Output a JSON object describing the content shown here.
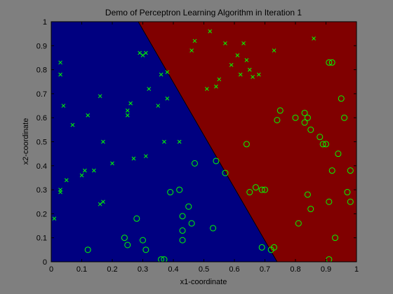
{
  "chart_data": {
    "type": "scatter",
    "title": "Demo of Perceptron Learning Algorithm in Iteration 1",
    "xlabel": "x1-coordinate",
    "ylabel": "x2-coordinate",
    "xlim": [
      0,
      1
    ],
    "ylim": [
      0,
      1
    ],
    "x_ticks": [
      "0",
      "0.1",
      "0.2",
      "0.3",
      "0.4",
      "0.5",
      "0.6",
      "0.7",
      "0.8",
      "0.9",
      "1"
    ],
    "y_ticks": [
      "0",
      "0.1",
      "0.2",
      "0.3",
      "0.4",
      "0.5",
      "0.6",
      "0.7",
      "0.8",
      "0.9",
      "1"
    ],
    "grid": false,
    "colors": {
      "figure_bg": "#7f7f7f",
      "region_negative": "#000080",
      "region_positive": "#800000",
      "marker": "#00ff00"
    },
    "decision_boundary": [
      [
        0.285,
        1.0
      ],
      [
        0.74,
        0.0
      ]
    ],
    "series": [
      {
        "marker": "x",
        "points": [
          [
            0.03,
            0.83
          ],
          [
            0.03,
            0.78
          ],
          [
            0.04,
            0.65
          ],
          [
            0.07,
            0.57
          ],
          [
            0.03,
            0.3
          ],
          [
            0.03,
            0.29
          ],
          [
            0.05,
            0.34
          ],
          [
            0.1,
            0.36
          ],
          [
            0.11,
            0.38
          ],
          [
            0.14,
            0.38
          ],
          [
            0.12,
            0.61
          ],
          [
            0.16,
            0.69
          ],
          [
            0.17,
            0.5
          ],
          [
            0.16,
            0.24
          ],
          [
            0.17,
            0.25
          ],
          [
            0.2,
            0.41
          ],
          [
            0.25,
            0.63
          ],
          [
            0.25,
            0.61
          ],
          [
            0.26,
            0.66
          ],
          [
            0.27,
            0.43
          ],
          [
            0.29,
            0.87
          ],
          [
            0.3,
            0.86
          ],
          [
            0.31,
            0.87
          ],
          [
            0.31,
            0.44
          ],
          [
            0.32,
            0.72
          ],
          [
            0.35,
            0.65
          ],
          [
            0.36,
            0.78
          ],
          [
            0.37,
            0.5
          ],
          [
            0.38,
            0.68
          ],
          [
            0.38,
            0.79
          ],
          [
            0.42,
            0.5
          ],
          [
            0.46,
            0.88
          ],
          [
            0.47,
            0.92
          ],
          [
            0.51,
            0.72
          ],
          [
            0.52,
            0.96
          ],
          [
            0.54,
            0.73
          ],
          [
            0.55,
            0.76
          ],
          [
            0.57,
            0.91
          ],
          [
            0.59,
            0.82
          ],
          [
            0.61,
            0.86
          ],
          [
            0.62,
            0.78
          ],
          [
            0.63,
            0.91
          ],
          [
            0.64,
            0.84
          ],
          [
            0.65,
            0.8
          ],
          [
            0.66,
            0.77
          ],
          [
            0.68,
            0.78
          ],
          [
            0.73,
            0.88
          ],
          [
            0.86,
            0.93
          ],
          [
            0.01,
            0.18
          ]
        ]
      },
      {
        "marker": "o",
        "points": [
          [
            0.12,
            0.05
          ],
          [
            0.24,
            0.1
          ],
          [
            0.25,
            0.07
          ],
          [
            0.28,
            0.18
          ],
          [
            0.3,
            0.09
          ],
          [
            0.31,
            0.05
          ],
          [
            0.36,
            0.01
          ],
          [
            0.37,
            0.01
          ],
          [
            0.39,
            0.29
          ],
          [
            0.42,
            0.3
          ],
          [
            0.43,
            0.09
          ],
          [
            0.43,
            0.19
          ],
          [
            0.43,
            0.13
          ],
          [
            0.45,
            0.23
          ],
          [
            0.46,
            0.16
          ],
          [
            0.47,
            0.41
          ],
          [
            0.53,
            0.14
          ],
          [
            0.54,
            0.42
          ],
          [
            0.57,
            0.37
          ],
          [
            0.64,
            0.49
          ],
          [
            0.65,
            0.29
          ],
          [
            0.67,
            0.31
          ],
          [
            0.69,
            0.3
          ],
          [
            0.7,
            0.3
          ],
          [
            0.69,
            0.06
          ],
          [
            0.72,
            0.05
          ],
          [
            0.73,
            0.06
          ],
          [
            0.74,
            0.59
          ],
          [
            0.75,
            0.63
          ],
          [
            0.8,
            0.6
          ],
          [
            0.81,
            0.16
          ],
          [
            0.83,
            0.62
          ],
          [
            0.83,
            0.58
          ],
          [
            0.84,
            0.6
          ],
          [
            0.85,
            0.55
          ],
          [
            0.84,
            0.28
          ],
          [
            0.85,
            0.22
          ],
          [
            0.88,
            0.52
          ],
          [
            0.89,
            0.49
          ],
          [
            0.9,
            0.49
          ],
          [
            0.91,
            0.83
          ],
          [
            0.92,
            0.83
          ],
          [
            0.91,
            0.25
          ],
          [
            0.92,
            0.38
          ],
          [
            0.93,
            0.1
          ],
          [
            0.94,
            0.45
          ],
          [
            0.95,
            0.68
          ],
          [
            0.96,
            0.6
          ],
          [
            0.97,
            0.29
          ],
          [
            0.98,
            0.38
          ],
          [
            0.91,
            0.01
          ],
          [
            0.98,
            0.25
          ]
        ]
      }
    ]
  }
}
